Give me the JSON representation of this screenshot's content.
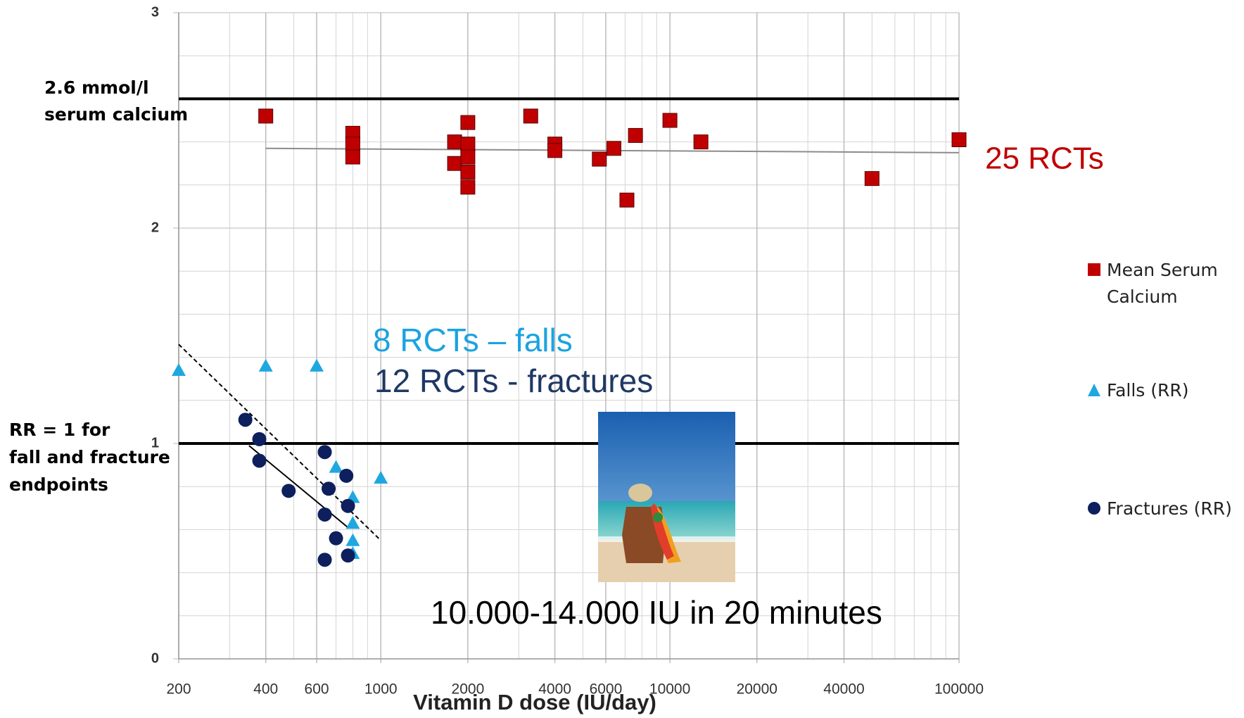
{
  "chart_data": {
    "type": "scatter",
    "x_label": "Vitamin D dose (IU/day)",
    "log_x": true,
    "grid": true,
    "xlim": [
      200,
      100000
    ],
    "xticks": [
      200,
      400,
      600,
      1000,
      2000,
      4000,
      6000,
      10000,
      20000,
      40000,
      100000
    ],
    "ylim": [
      0,
      3
    ],
    "yticks": [
      0,
      1,
      2,
      3
    ],
    "reference_lines": [
      2.6,
      1
    ],
    "series": [
      {
        "name": "Mean Serum Calcium",
        "marker": "square",
        "color": "#c00000",
        "x": [
          400,
          800,
          800,
          800,
          1800,
          1800,
          2000,
          2000,
          2000,
          2000,
          2000,
          3300,
          4000,
          4000,
          5700,
          6400,
          7100,
          7600,
          10000,
          12800,
          50000,
          100000
        ],
        "values": [
          2.52,
          2.44,
          2.39,
          2.33,
          2.4,
          2.3,
          2.49,
          2.39,
          2.33,
          2.26,
          2.19,
          2.52,
          2.39,
          2.36,
          2.32,
          2.37,
          2.13,
          2.43,
          2.5,
          2.4,
          2.23,
          2.41
        ]
      },
      {
        "name": "Falls (RR)",
        "marker": "triangle",
        "color": "#1fa8e0",
        "x": [
          200,
          400,
          600,
          700,
          800,
          800,
          800,
          800,
          1000
        ],
        "values": [
          1.34,
          1.36,
          1.36,
          0.89,
          0.75,
          0.63,
          0.55,
          0.49,
          0.84
        ]
      },
      {
        "name": "Fractures (RR)",
        "marker": "circle",
        "color": "#0d1f5c",
        "x": [
          340,
          380,
          380,
          480,
          640,
          660,
          640,
          760,
          770,
          700,
          640,
          770
        ],
        "values": [
          1.11,
          1.02,
          0.92,
          0.78,
          0.96,
          0.79,
          0.67,
          0.85,
          0.71,
          0.56,
          0.46,
          0.48
        ]
      }
    ],
    "trend_lines": [
      {
        "x": [
          400,
          100000
        ],
        "values": [
          2.37,
          2.35
        ],
        "color": "#8c8c8c",
        "dashed": false
      },
      {
        "x": [
          350,
          770
        ],
        "values": [
          0.99,
          0.61
        ],
        "color": "#000000",
        "dashed": false
      },
      {
        "x": [
          200,
          1000
        ],
        "values": [
          1.46,
          0.55
        ],
        "color": "#000000",
        "dashed": true
      }
    ],
    "annotations": [
      {
        "lines": [
          "2.6 mmol/l",
          "serum calcium"
        ],
        "color": "#000000"
      },
      {
        "lines": [
          "RR = 1 for",
          "fall and fracture",
          "endpoints"
        ],
        "color": "#000000"
      },
      {
        "lines": [
          "25 RCTs"
        ],
        "color": "#c00000"
      },
      {
        "lines": [
          "8 RCTs – falls"
        ],
        "color": "#1aa3e0"
      },
      {
        "lines": [
          "12 RCTs - fractures"
        ],
        "color": "#1f3864"
      },
      {
        "lines": [
          "10.000-14.000 IU in 20 minutes"
        ],
        "color": "#000000"
      }
    ]
  }
}
